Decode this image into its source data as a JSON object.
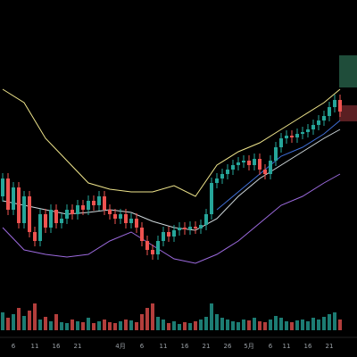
{
  "chart_data": {
    "type": "candlestick",
    "categories": [
      null,
      null,
      "6",
      null,
      null,
      null,
      "11",
      null,
      null,
      null,
      "16",
      null,
      null,
      null,
      "21",
      null,
      null,
      null,
      null,
      null,
      null,
      null,
      "4月",
      null,
      null,
      null,
      "6",
      null,
      null,
      null,
      "11",
      null,
      null,
      null,
      "16",
      null,
      null,
      null,
      "21",
      null,
      null,
      null,
      "26",
      null,
      null,
      null,
      "5月",
      null,
      null,
      null,
      "6",
      null,
      null,
      "11",
      null,
      null,
      null,
      "16",
      null,
      null,
      null,
      "21",
      null,
      null
    ],
    "open": [
      110,
      130,
      95,
      120,
      80,
      110,
      70,
      60,
      90,
      75,
      95,
      80,
      85,
      95,
      90,
      100,
      95,
      105,
      100,
      110,
      95,
      90,
      85,
      90,
      80,
      85,
      75,
      60,
      50,
      45,
      60,
      70,
      65,
      72,
      75,
      73,
      76,
      74,
      78,
      90,
      125,
      130,
      135,
      140,
      145,
      148,
      150,
      145,
      152,
      140,
      135,
      150,
      165,
      175,
      178,
      176,
      180,
      182,
      185,
      190,
      195,
      200,
      210,
      218
    ],
    "high": [
      136,
      136,
      126,
      126,
      116,
      116,
      76,
      96,
      96,
      101,
      101,
      91,
      101,
      101,
      106,
      106,
      111,
      111,
      116,
      116,
      101,
      96,
      96,
      96,
      91,
      91,
      81,
      66,
      56,
      66,
      76,
      76,
      78,
      81,
      81,
      82,
      82,
      84,
      96,
      131,
      136,
      141,
      146,
      151,
      154,
      156,
      156,
      158,
      158,
      146,
      156,
      171,
      181,
      184,
      184,
      186,
      188,
      191,
      196,
      201,
      206,
      216,
      224,
      224
    ],
    "low": [
      104,
      89,
      89,
      74,
      74,
      64,
      54,
      54,
      69,
      69,
      74,
      74,
      79,
      84,
      84,
      89,
      89,
      94,
      94,
      89,
      84,
      79,
      79,
      74,
      74,
      69,
      54,
      44,
      39,
      39,
      54,
      59,
      59,
      66,
      67,
      67,
      68,
      68,
      72,
      84,
      119,
      124,
      129,
      134,
      139,
      142,
      139,
      139,
      134,
      129,
      129,
      144,
      159,
      169,
      170,
      170,
      174,
      176,
      179,
      184,
      189,
      194,
      204,
      199
    ],
    "close": [
      130,
      95,
      120,
      80,
      110,
      70,
      60,
      90,
      75,
      95,
      80,
      85,
      95,
      90,
      100,
      95,
      105,
      100,
      110,
      95,
      90,
      85,
      90,
      80,
      85,
      75,
      60,
      50,
      45,
      60,
      70,
      65,
      72,
      75,
      73,
      76,
      74,
      78,
      90,
      125,
      130,
      135,
      140,
      145,
      148,
      150,
      145,
      152,
      140,
      135,
      150,
      165,
      175,
      178,
      176,
      180,
      182,
      185,
      190,
      195,
      200,
      210,
      218,
      205
    ],
    "volume": [
      20,
      14,
      18,
      25,
      16,
      22,
      30,
      12,
      15,
      10,
      18,
      9,
      8,
      12,
      10,
      9,
      14,
      8,
      10,
      12,
      9,
      8,
      10,
      12,
      11,
      9,
      18,
      25,
      30,
      15,
      12,
      8,
      10,
      7,
      9,
      8,
      10,
      12,
      15,
      30,
      18,
      14,
      12,
      10,
      9,
      12,
      11,
      14,
      10,
      9,
      12,
      16,
      14,
      10,
      9,
      11,
      12,
      10,
      14,
      12,
      15,
      18,
      20,
      12
    ],
    "up_color": "#26a69a",
    "down_color": "#ef5350",
    "lines": [
      {
        "color": "#f0e68c",
        "x": [
          0,
          4,
          8,
          12,
          16,
          20,
          24,
          28,
          32,
          36,
          40,
          44,
          48,
          52,
          56,
          60,
          63
        ],
        "values": [
          230,
          215,
          175,
          150,
          125,
          118,
          115,
          115,
          122,
          110,
          145,
          160,
          170,
          185,
          200,
          215,
          230
        ]
      },
      {
        "color": "#cfd8dc",
        "x": [
          0,
          4,
          8,
          12,
          16,
          20,
          24,
          28,
          32,
          36,
          40,
          44,
          48,
          52,
          56,
          60,
          63
        ],
        "values": [
          105,
          100,
          95,
          90,
          92,
          95,
          92,
          82,
          75,
          72,
          85,
          110,
          130,
          145,
          160,
          175,
          185
        ]
      },
      {
        "color": "#9c6ade",
        "x": [
          0,
          4,
          8,
          12,
          16,
          20,
          24,
          28,
          32,
          36,
          40,
          44,
          48,
          52,
          56,
          60,
          63
        ],
        "values": [
          75,
          50,
          45,
          42,
          45,
          60,
          70,
          55,
          40,
          35,
          45,
          60,
          80,
          100,
          110,
          125,
          135
        ]
      },
      {
        "color": "#3f6fd8",
        "x": [
          40,
          44,
          48,
          52,
          56,
          60,
          63
        ],
        "values": [
          95,
          115,
          135,
          155,
          165,
          180,
          195
        ]
      }
    ],
    "ylim": [
      0,
      330
    ],
    "volume_ylim": [
      0,
      40
    ]
  }
}
